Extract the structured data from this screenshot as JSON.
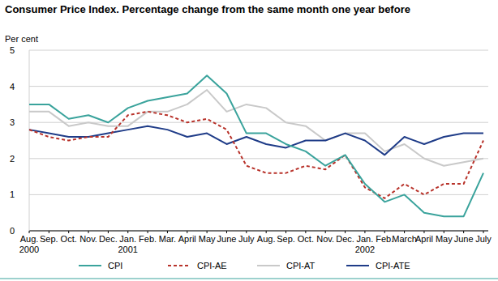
{
  "chart_data": {
    "type": "line",
    "title": "Consumer Price Index. Percentage change from the same month one year before",
    "y_label": "Per cent",
    "categories": [
      "Aug. 2000",
      "Sep.",
      "Oct.",
      "Nov.",
      "Dec.",
      "Jan. 2001",
      "Feb.",
      "Mar.",
      "April",
      "May",
      "June",
      "July",
      "Aug.",
      "Sep.",
      "Oct.",
      "Nov.",
      "Dec.",
      "Jan. 2002",
      "Feb.",
      "March",
      "April",
      "May",
      "June",
      "July"
    ],
    "series": [
      {
        "name": "CPI",
        "color": "#3aa39c",
        "line_style": "solid",
        "values": [
          3.5,
          3.5,
          3.1,
          3.2,
          3.0,
          3.4,
          3.6,
          3.7,
          3.8,
          4.3,
          3.8,
          2.7,
          2.7,
          2.4,
          2.2,
          1.8,
          2.1,
          1.3,
          0.8,
          1.0,
          0.5,
          0.4,
          0.4,
          1.6
        ]
      },
      {
        "name": "CPI-AE",
        "color": "#b8322a",
        "line_style": "dashed",
        "values": [
          2.8,
          2.6,
          2.5,
          2.6,
          2.6,
          3.2,
          3.3,
          3.2,
          3.0,
          3.1,
          2.8,
          1.8,
          1.6,
          1.6,
          1.8,
          1.7,
          2.1,
          1.2,
          0.9,
          1.3,
          1.0,
          1.3,
          1.3,
          2.5
        ]
      },
      {
        "name": "CPI-AT",
        "color": "#c9c9c9",
        "line_style": "solid",
        "values": [
          3.3,
          3.3,
          2.9,
          3.0,
          2.9,
          2.9,
          3.3,
          3.3,
          3.5,
          3.9,
          3.3,
          3.5,
          3.4,
          3.0,
          2.9,
          2.5,
          2.7,
          2.7,
          2.2,
          2.4,
          2.0,
          1.8,
          1.9,
          2.0
        ]
      },
      {
        "name": "CPI-ATE",
        "color": "#1f3c88",
        "line_style": "solid",
        "values": [
          2.8,
          2.7,
          2.6,
          2.6,
          2.7,
          2.8,
          2.9,
          2.8,
          2.6,
          2.7,
          2.4,
          2.6,
          2.4,
          2.3,
          2.5,
          2.5,
          2.7,
          2.5,
          2.1,
          2.6,
          2.4,
          2.6,
          2.7,
          2.7
        ]
      }
    ],
    "ylim": [
      0,
      5
    ],
    "yticks": [
      0,
      1,
      2,
      3,
      4,
      5
    ],
    "grid": true,
    "legend": "bottom"
  }
}
